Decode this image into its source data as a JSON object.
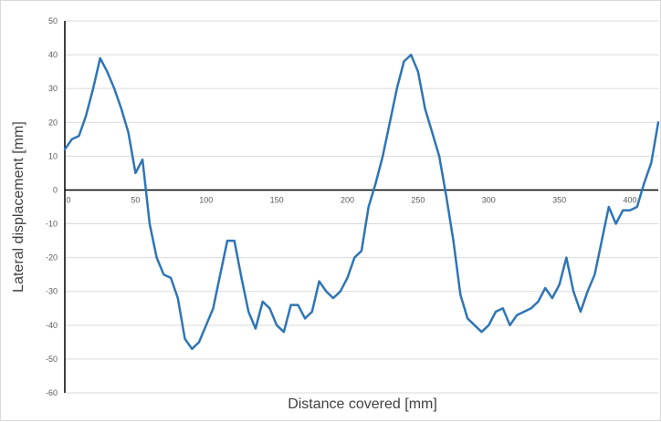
{
  "chart_data": {
    "type": "line",
    "title": "",
    "xlabel": "Distance covered [mm]",
    "ylabel": "Lateral displacement [mm]",
    "xlim": [
      0,
      420
    ],
    "ylim": [
      -60,
      50
    ],
    "x_ticks": [
      0,
      50,
      100,
      150,
      200,
      250,
      300,
      350,
      400
    ],
    "y_ticks": [
      -60,
      -50,
      -40,
      -30,
      -20,
      -10,
      0,
      10,
      20,
      30,
      40,
      50
    ],
    "grid": "horizontal",
    "legend": "none",
    "series": [
      {
        "color": "#2E75B6",
        "x": [
          0,
          5,
          10,
          15,
          20,
          25,
          30,
          35,
          40,
          45,
          50,
          55,
          60,
          65,
          70,
          75,
          80,
          85,
          90,
          95,
          100,
          105,
          110,
          115,
          120,
          125,
          130,
          135,
          140,
          145,
          150,
          155,
          160,
          165,
          170,
          175,
          180,
          185,
          190,
          195,
          200,
          205,
          210,
          215,
          220,
          225,
          230,
          235,
          240,
          245,
          250,
          255,
          260,
          265,
          270,
          275,
          280,
          285,
          290,
          295,
          300,
          305,
          310,
          315,
          320,
          325,
          330,
          335,
          340,
          345,
          350,
          355,
          360,
          365,
          370,
          375,
          380,
          385,
          390,
          395,
          400,
          405,
          410,
          415,
          420
        ],
        "y": [
          12,
          15,
          16,
          22,
          30,
          39,
          35,
          30,
          24,
          17,
          5,
          9,
          -10,
          -20,
          -25,
          -26,
          -32,
          -44,
          -47,
          -45,
          -40,
          -35,
          -25,
          -15,
          -15,
          -26,
          -36,
          -41,
          -33,
          -35,
          -40,
          -42,
          -34,
          -34,
          -38,
          -36,
          -27,
          -30,
          -32,
          -30,
          -26,
          -20,
          -18,
          -5,
          2,
          10,
          20,
          30,
          38,
          40,
          35,
          24,
          17,
          10,
          -2,
          -15,
          -31,
          -38,
          -40,
          -42,
          -40,
          -36,
          -35,
          -40,
          -37,
          -36,
          -35,
          -33,
          -29,
          -32,
          -28,
          -20,
          -30,
          -36,
          -30,
          -25,
          -15,
          -5,
          -10,
          -6,
          -6,
          -5,
          2,
          8,
          20
        ]
      }
    ]
  }
}
